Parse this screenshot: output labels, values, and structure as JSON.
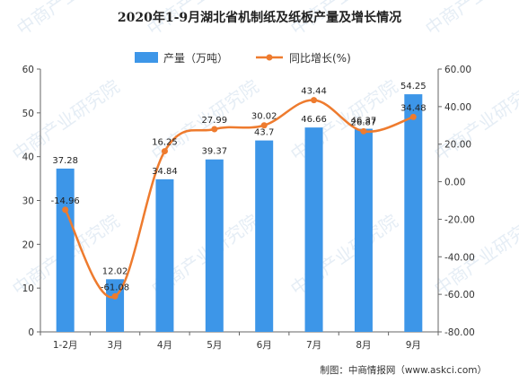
{
  "chart_data": {
    "type": "bar",
    "title": "2020年1-9月湖北省机制纸及纸板产量及增长情况",
    "categories": [
      "1-2月",
      "3月",
      "4月",
      "5月",
      "6月",
      "7月",
      "8月",
      "9月"
    ],
    "series": [
      {
        "name": "产量（万吨）",
        "type": "bar",
        "axis": "left",
        "color": "#3d96e8",
        "values": [
          37.28,
          12.02,
          34.84,
          39.37,
          43.7,
          46.66,
          46.37,
          54.25
        ]
      },
      {
        "name": "同比增长(%)",
        "type": "line",
        "axis": "right",
        "color": "#ee7b2e",
        "values": [
          -14.96,
          -61.08,
          16.25,
          27.99,
          30.02,
          43.44,
          26.87,
          34.48
        ]
      }
    ],
    "y_left": {
      "min": 0,
      "max": 60,
      "ticks": [
        "0",
        "10",
        "20",
        "30",
        "40",
        "50",
        "60"
      ]
    },
    "y_right": {
      "min": -80,
      "max": 60,
      "ticks": [
        "-80.00",
        "-60.00",
        "-40.00",
        "-20.00",
        "0.00",
        "20.00",
        "40.00",
        "60.00"
      ]
    },
    "legend_position": "top-center",
    "grid": false
  },
  "source": "制图：中商情报网（www.askci.com）",
  "watermark": "中商产业研究院"
}
